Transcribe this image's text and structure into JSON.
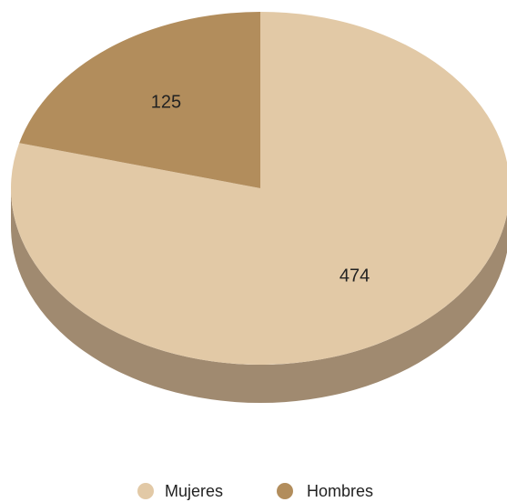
{
  "chart_data": {
    "type": "pie",
    "style": "3d",
    "title": "",
    "categories": [
      "Mujeres",
      "Hombres"
    ],
    "values": [
      474,
      125
    ],
    "colors": [
      "#E2C9A6",
      "#B28D5C"
    ],
    "side_colors": [
      "#A08A70",
      "#7E6340"
    ],
    "data_labels": [
      "474",
      "125"
    ],
    "legend": {
      "placement": "bottom",
      "entries": [
        "Mujeres",
        "Hombres"
      ]
    }
  }
}
